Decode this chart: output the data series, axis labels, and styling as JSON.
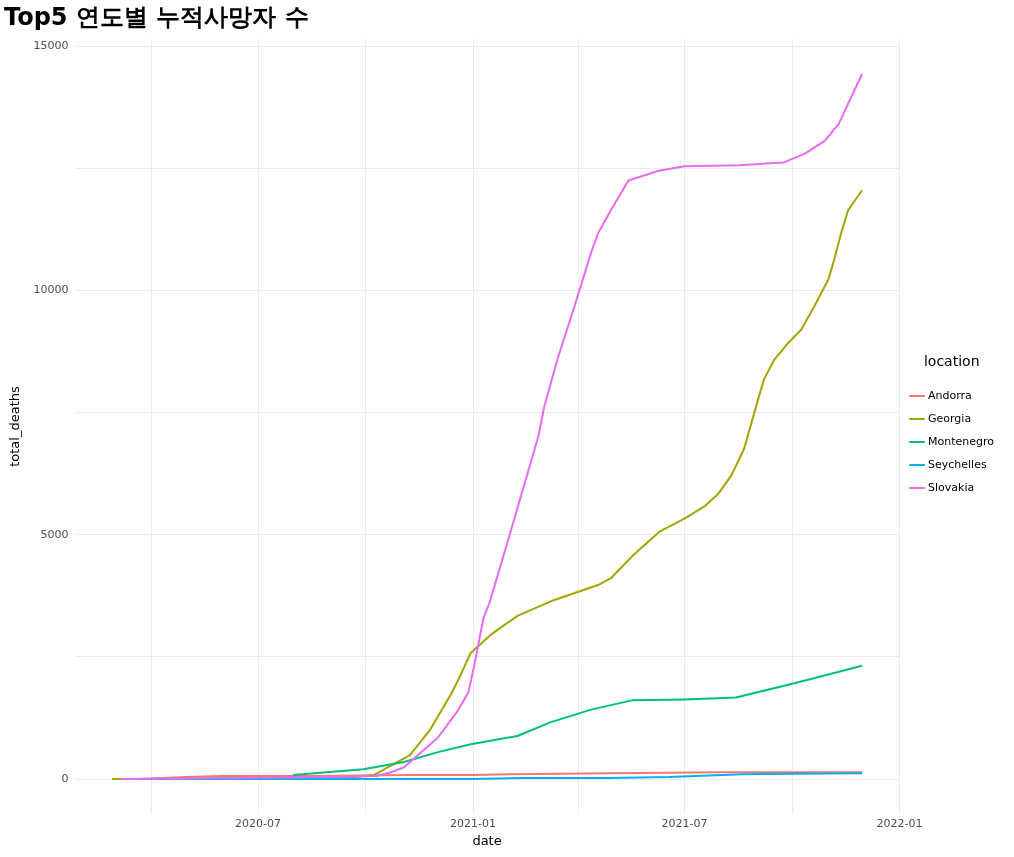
{
  "chart_data": {
    "type": "line",
    "title": "Top5 연도별 누적사망자 수",
    "xlabel": "date",
    "ylabel": "total_deaths",
    "legend_title": "location",
    "legend": "right",
    "grid": true,
    "xlim": [
      "2020-01-26",
      "2022-01-01"
    ],
    "xticks": [
      {
        "value": "2020-04-01",
        "label": null
      },
      {
        "value": "2020-07-01",
        "label": "2020-07"
      },
      {
        "value": "2020-10-01",
        "label": null
      },
      {
        "value": "2021-01-01",
        "label": "2021-01"
      },
      {
        "value": "2021-04-01",
        "label": null
      },
      {
        "value": "2021-07-01",
        "label": "2021-07"
      },
      {
        "value": "2021-10-01",
        "label": null
      },
      {
        "value": "2022-01-01",
        "label": "2022-01"
      }
    ],
    "ylim": [
      -720,
      15150
    ],
    "yticks": [
      0,
      {
        "value": 2500,
        "label": null
      },
      5000,
      {
        "value": 7500,
        "label": null
      },
      10000,
      {
        "value": 12500,
        "label": null
      },
      15000
    ],
    "series": [
      {
        "name": "Andorra",
        "color": "#f8766d",
        "x": [
          "2020-03-03",
          "2020-03-22",
          "2020-04-10",
          "2020-04-30",
          "2020-06-01",
          "2020-08-15",
          "2020-11-10",
          "2021-01-01",
          "2021-02-05",
          "2021-04-25",
          "2021-08-01",
          "2021-11-30"
        ],
        "values": [
          0,
          0,
          20,
          40,
          60,
          60,
          80,
          80,
          100,
          120,
          140,
          140
        ]
      },
      {
        "name": "Georgia",
        "color": "#a3a500",
        "x": [
          "2020-02-27",
          "2020-04-01",
          "2020-07-01",
          "2020-09-15",
          "2020-10-08",
          "2020-11-08",
          "2020-11-25",
          "2020-12-13",
          "2020-12-19",
          "2020-12-30",
          "2021-01-16",
          "2021-02-08",
          "2021-03-11",
          "2021-04-18",
          "2021-04-29",
          "2021-05-18",
          "2021-06-10",
          "2021-07-01",
          "2021-07-18",
          "2021-07-30",
          "2021-08-10",
          "2021-08-21",
          "2021-09-02",
          "2021-09-07",
          "2021-09-16",
          "2021-09-28",
          "2021-10-09",
          "2021-10-20",
          "2021-11-01",
          "2021-11-06",
          "2021-11-12",
          "2021-11-18",
          "2021-11-30"
        ],
        "values": [
          0,
          0,
          20,
          20,
          80,
          490,
          1000,
          1730,
          2010,
          2580,
          2950,
          3340,
          3660,
          3970,
          4110,
          4580,
          5070,
          5330,
          5580,
          5840,
          6210,
          6760,
          7770,
          8180,
          8590,
          8930,
          9200,
          9670,
          10220,
          10620,
          11170,
          11640,
          12050
        ]
      },
      {
        "name": "Montenegro",
        "color": "#00bf7d",
        "x": [
          "2020-07-31",
          "2020-09-29",
          "2020-11-03",
          "2020-12-02",
          "2020-12-30",
          "2021-02-08",
          "2021-03-08",
          "2021-04-12",
          "2021-05-17",
          "2021-07-01",
          "2021-08-14",
          "2021-09-28",
          "2021-11-30"
        ],
        "values": [
          80,
          200,
          350,
          550,
          710,
          880,
          1160,
          1420,
          1610,
          1630,
          1670,
          1930,
          2320
        ]
      },
      {
        "name": "Seychelles",
        "color": "#00b0f6",
        "x": [
          "2020-03-14",
          "2021-01-01",
          "2021-02-13",
          "2021-04-28",
          "2021-06-18",
          "2021-08-20",
          "2021-11-30"
        ],
        "values": [
          0,
          0,
          20,
          20,
          40,
          100,
          120
        ]
      },
      {
        "name": "Slovakia",
        "color": "#e76bf3",
        "x": [
          "2020-03-06",
          "2020-06-01",
          "2020-09-01",
          "2020-10-10",
          "2020-10-23",
          "2020-11-03",
          "2020-12-02",
          "2020-12-19",
          "2020-12-28",
          "2021-01-02",
          "2021-01-10",
          "2021-01-15",
          "2021-02-02",
          "2021-02-26",
          "2021-03-03",
          "2021-03-15",
          "2021-03-26",
          "2021-04-04",
          "2021-04-12",
          "2021-04-18",
          "2021-04-29",
          "2021-05-14",
          "2021-06-09",
          "2021-07-01",
          "2021-08-16",
          "2021-09-24",
          "2021-10-12",
          "2021-10-29",
          "2021-11-10",
          "2021-11-18",
          "2021-11-30"
        ],
        "values": [
          0,
          20,
          40,
          60,
          140,
          240,
          850,
          1400,
          1770,
          2320,
          3300,
          3600,
          5050,
          7020,
          7630,
          8650,
          9460,
          10150,
          10770,
          11170,
          11640,
          12250,
          12450,
          12540,
          12560,
          12620,
          12800,
          13060,
          13410,
          13820,
          14430
        ]
      }
    ]
  }
}
